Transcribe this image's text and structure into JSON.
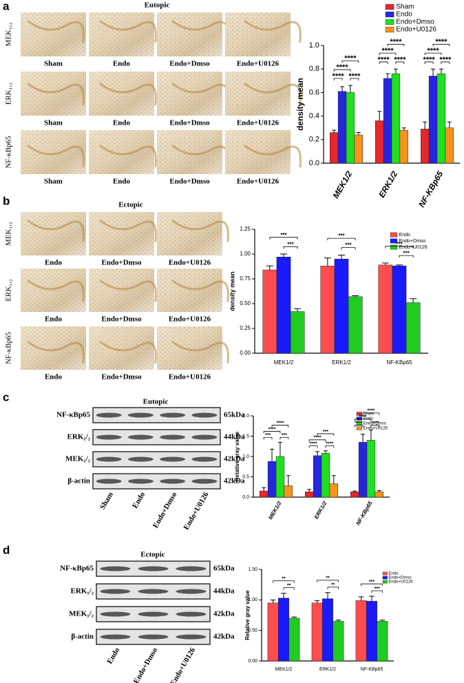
{
  "panels": [
    {
      "label": "a",
      "title": "Eutopic",
      "rows": [
        "MEK₁,₂",
        "ERK₁,₂",
        "NF-κBp65"
      ],
      "columns": [
        "Sham",
        "Endo",
        "Endo+Dmso",
        "Endo+U0126"
      ]
    },
    {
      "label": "b",
      "title": "Ectopic",
      "rows": [
        "MEK₁,₂",
        "ERK₁,₂",
        "NF-κBp65"
      ],
      "columns": [
        "Endo",
        "Endo+Dmso",
        "Endo+U0126"
      ]
    },
    {
      "label": "c",
      "title": "Eutopic",
      "rows": [
        "NF-κBp65",
        "ERK₁/₂",
        "MEK₁/₂",
        "β-actin"
      ],
      "sizes": [
        "65kDa",
        "44kDa",
        "42kDa",
        "42kDa"
      ],
      "lanes": [
        "Sham",
        "Endo",
        "Endo+Dmso",
        "Endo+U0126"
      ]
    },
    {
      "label": "d",
      "title": "Ectopic",
      "rows": [
        "NF-κBp65",
        "ERK₁/₂",
        "MEK₁/₂",
        "β-actin"
      ],
      "sizes": [
        "65kDa",
        "44kDa",
        "42kDa",
        "42kDa"
      ],
      "lanes": [
        "Endo",
        "Endo+Dmso",
        "Endo+U0126"
      ]
    }
  ],
  "chart_data": [
    {
      "type": "bar",
      "y_label": "density mean",
      "categories": [
        "MEK1/2",
        "ERK1/2",
        "NF-KBp65"
      ],
      "series": [
        {
          "name": "Sham",
          "color": "#e8262b",
          "values": [
            0.26,
            0.36,
            0.29
          ],
          "errors": [
            0.02,
            0.08,
            0.06
          ]
        },
        {
          "name": "Endo",
          "color": "#2626e0",
          "values": [
            0.61,
            0.72,
            0.74
          ],
          "errors": [
            0.04,
            0.04,
            0.06
          ]
        },
        {
          "name": "Endo+Dmso",
          "color": "#20e020",
          "values": [
            0.6,
            0.76,
            0.76
          ],
          "errors": [
            0.06,
            0.04,
            0.04
          ]
        },
        {
          "name": "Endo+U0126",
          "color": "#f7931e",
          "values": [
            0.24,
            0.28,
            0.3
          ],
          "errors": [
            0.02,
            0.02,
            0.05
          ]
        }
      ],
      "ylim": [
        0,
        1
      ],
      "yticks": [
        {
          "value": 0,
          "label": "0.0"
        },
        0.2,
        0.4,
        0.6,
        0.8,
        {
          "value": 1,
          "label": "1.0"
        }
      ],
      "annotations": [
        "****",
        "****",
        "****",
        "****",
        "****",
        "****",
        "****",
        "****",
        "****",
        "****",
        "****",
        "****"
      ]
    },
    {
      "type": "bar",
      "y_label": "density mean",
      "categories": [
        "MEK1/2",
        "ERK1/2",
        "NF-KBp65"
      ],
      "series": [
        {
          "name": "Endo",
          "color": "#ff4d4d",
          "values": [
            0.84,
            0.88,
            0.89
          ],
          "errors": [
            0.04,
            0.08,
            0.02
          ]
        },
        {
          "name": "Endo+Dmso",
          "color": "#1a1aff",
          "values": [
            0.97,
            0.95,
            0.88
          ],
          "errors": [
            0.03,
            0.04,
            0.01
          ]
        },
        {
          "name": "Endo+U0126",
          "color": "#1fcc1f",
          "values": [
            0.42,
            0.57,
            0.51
          ],
          "errors": [
            0.03,
            0.01,
            0.04
          ]
        }
      ],
      "ylim": [
        0,
        1.25
      ],
      "yticks": [
        {
          "value": 0,
          "label": "0.00"
        },
        {
          "value": 0.25,
          "label": "0.25"
        },
        {
          "value": 0.5,
          "label": "0.50"
        },
        {
          "value": 0.75,
          "label": "0.75"
        },
        {
          "value": 1,
          "label": "1.00"
        },
        {
          "value": 1.25,
          "label": "1.25"
        }
      ],
      "annotations": [
        "***",
        "***",
        "***",
        "***",
        "***",
        "***"
      ]
    },
    {
      "type": "bar",
      "y_label": "Relative gray value",
      "categories": [
        "MEK1/2",
        "ERK1/2",
        "NF-KBp65"
      ],
      "series": [
        {
          "name": "Sham",
          "color": "#e8262b",
          "values": [
            0.15,
            0.13,
            0.13
          ],
          "errors": [
            0.08,
            0.06,
            0.02
          ]
        },
        {
          "name": "Endo",
          "color": "#2626e0",
          "values": [
            0.88,
            1.02,
            1.35
          ],
          "errors": [
            0.3,
            0.1,
            0.2
          ]
        },
        {
          "name": "Endo+Dmso",
          "color": "#20e020",
          "values": [
            1,
            1.08,
            1.4
          ],
          "errors": [
            0.35,
            0.06,
            0.25
          ]
        },
        {
          "name": "Endo+U0126",
          "color": "#f7931e",
          "values": [
            0.28,
            0.33,
            0.13
          ],
          "errors": [
            0.25,
            0.2,
            0.03
          ]
        }
      ],
      "ylim": [
        0,
        2
      ],
      "yticks": [
        {
          "value": 0,
          "label": "0.0"
        },
        0.5,
        {
          "value": 1,
          "label": "1.0"
        },
        1.5,
        {
          "value": 2,
          "label": "2.0"
        }
      ],
      "annotations": [
        "***",
        "***",
        "****",
        "****",
        "****",
        "****",
        "****",
        "***",
        "****",
        "****",
        "****",
        "****"
      ]
    },
    {
      "type": "bar",
      "y_label": "Relative gray value",
      "categories": [
        "MEK1/2",
        "ERK1/2",
        "NF-KBp65"
      ],
      "series": [
        {
          "name": "Endo",
          "color": "#ff4d4d",
          "values": [
            0.95,
            0.95,
            0.99
          ],
          "errors": [
            0.05,
            0.04,
            0.06
          ]
        },
        {
          "name": "Endo+Dmso",
          "color": "#1a1aff",
          "values": [
            1.03,
            1.02,
            0.98
          ],
          "errors": [
            0.08,
            0.1,
            0.08
          ]
        },
        {
          "name": "Endo+U0126",
          "color": "#1fcc1f",
          "values": [
            0.7,
            0.65,
            0.65
          ],
          "errors": [
            0.02,
            0.02,
            0.02
          ]
        }
      ],
      "ylim": [
        0,
        1.5
      ],
      "yticks": [
        {
          "value": 0,
          "label": "0.00"
        },
        {
          "value": 0.5,
          "label": "0.50"
        },
        {
          "value": 1,
          "label": "1.00"
        },
        {
          "value": 1.5,
          "label": "1.50"
        }
      ],
      "annotations": [
        "**",
        "**",
        "**",
        "**",
        "***",
        "***"
      ]
    }
  ]
}
